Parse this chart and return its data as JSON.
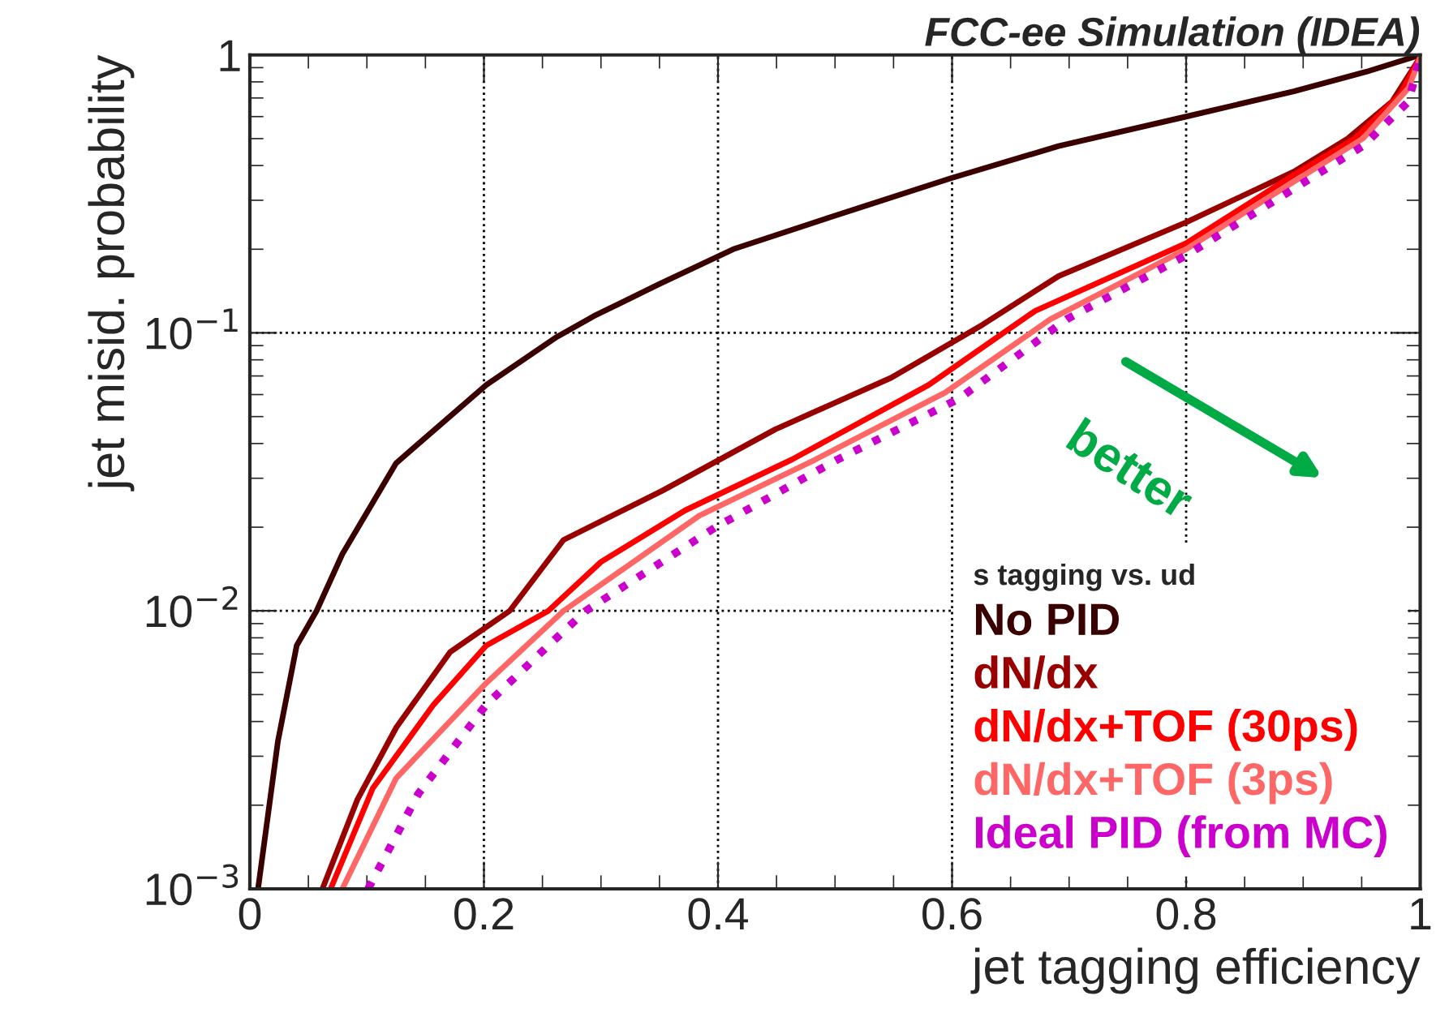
{
  "chart_data": {
    "type": "line",
    "title": "FCC-ee Simulation (IDEA)",
    "xlabel": "jet tagging efficiency",
    "ylabel": "jet misid. probability",
    "legend_title": "s tagging vs. ud",
    "xlim": [
      0,
      1
    ],
    "ylim": [
      0.001,
      1
    ],
    "log": "y",
    "xticks": [
      {
        "value": 0,
        "label": "0"
      },
      0.2,
      0.4,
      0.6,
      0.8,
      {
        "value": 1,
        "label": "1"
      }
    ],
    "yticks": [
      {
        "value": 0.001,
        "label": "10$^{−3}$"
      },
      {
        "value": 0.01,
        "label": "10$^{−2}$"
      },
      {
        "value": 0.1,
        "label": "10$^{−1}$"
      },
      {
        "value": 1,
        "label": "1"
      }
    ],
    "grid": true,
    "legend": "bottom right",
    "marker": "none",
    "annotations": [
      "better"
    ],
    "series": [
      {
        "name": "No PID",
        "color": "#3a0000",
        "line_style": "solid",
        "x": [
          0.007,
          0.024,
          0.04,
          0.057,
          0.079,
          0.125,
          0.202,
          0.261,
          0.294,
          0.35,
          0.413,
          0.495,
          0.599,
          0.691,
          0.8,
          0.892,
          0.954,
          1.0
        ],
        "values": [
          0.001,
          0.0034,
          0.0075,
          0.01,
          0.016,
          0.034,
          0.065,
          0.096,
          0.115,
          0.15,
          0.2,
          0.26,
          0.36,
          0.47,
          0.6,
          0.74,
          0.87,
          1.0
        ]
      },
      {
        "name": "dN/dx",
        "color": "#990000",
        "line_style": "solid",
        "x": [
          0.062,
          0.092,
          0.125,
          0.171,
          0.222,
          0.268,
          0.352,
          0.449,
          0.548,
          0.626,
          0.691,
          0.8,
          0.892,
          0.938,
          0.976,
          1.0
        ],
        "values": [
          0.001,
          0.0021,
          0.0038,
          0.0071,
          0.01,
          0.018,
          0.027,
          0.045,
          0.069,
          0.107,
          0.16,
          0.25,
          0.38,
          0.5,
          0.68,
          0.98
        ]
      },
      {
        "name": "dN/dx+TOF (30ps)",
        "color": "#ff0000",
        "line_style": "solid",
        "x": [
          0.069,
          0.105,
          0.157,
          0.202,
          0.255,
          0.3,
          0.372,
          0.463,
          0.58,
          0.671,
          0.8,
          0.892,
          0.944,
          0.983,
          1.0
        ],
        "values": [
          0.001,
          0.0023,
          0.0046,
          0.0075,
          0.01,
          0.015,
          0.023,
          0.035,
          0.065,
          0.12,
          0.21,
          0.37,
          0.5,
          0.72,
          0.98
        ]
      },
      {
        "name": "dN/dx+TOF (3ps)",
        "color": "#ff6666",
        "line_style": "solid",
        "x": [
          0.079,
          0.125,
          0.202,
          0.268,
          0.384,
          0.483,
          0.594,
          0.684,
          0.8,
          0.892,
          0.951,
          0.99,
          1.0
        ],
        "values": [
          0.001,
          0.0025,
          0.0055,
          0.01,
          0.022,
          0.035,
          0.061,
          0.112,
          0.2,
          0.35,
          0.5,
          0.76,
          0.98
        ]
      },
      {
        "name": "Ideal PID (from MC)",
        "color": "#cc00cc",
        "line_style": "dotted",
        "x": [
          0.101,
          0.144,
          0.202,
          0.255,
          0.287,
          0.398,
          0.502,
          0.606,
          0.698,
          0.8,
          0.892,
          0.951,
          0.99,
          1.0
        ],
        "values": [
          0.001,
          0.0022,
          0.0046,
          0.0075,
          0.01,
          0.02,
          0.035,
          0.058,
          0.112,
          0.19,
          0.33,
          0.47,
          0.68,
          0.98
        ]
      }
    ]
  }
}
